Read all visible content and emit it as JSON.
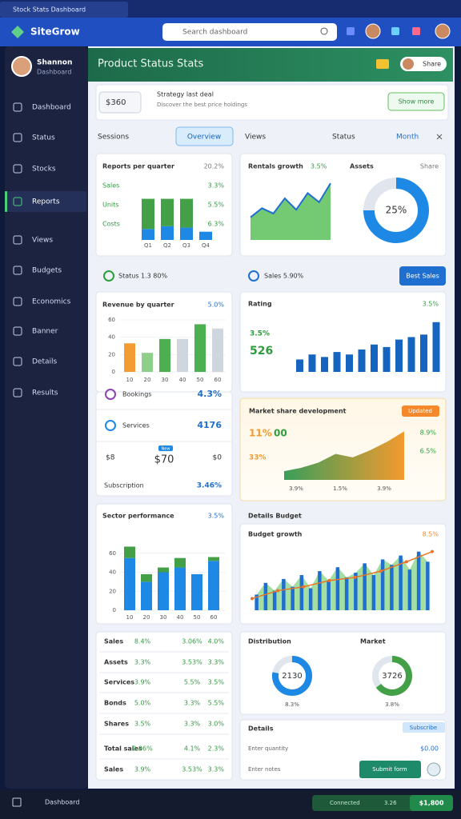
{
  "browser": {
    "tab": "Stock Stats Dashboard"
  },
  "topbar": {
    "logo": "SiteGrow",
    "search": "Search dashboard"
  },
  "sidebar": {
    "user": {
      "name": "Shannon",
      "role": "Dashboard"
    },
    "items": [
      "Dashboard",
      "Status",
      "Stocks",
      "Reports",
      "Views",
      "Budgets",
      "Economics",
      "Banner",
      "Details",
      "Results"
    ],
    "active": 3
  },
  "header": {
    "title": "Product Status Stats",
    "badge": "Share"
  },
  "filter": {
    "value": "$360",
    "label": "Strategy last deal",
    "sublabel": "Discover the best price holdings",
    "button": "Show more"
  },
  "tabs": {
    "items": [
      "Sessions",
      "Overview",
      "Views",
      "Status",
      "Month"
    ],
    "active": 1
  },
  "quarter_panel": {
    "title": "Reports per quarter",
    "change": "20.2%",
    "categories": [
      "Q1",
      "Q2",
      "Q3",
      "Q4"
    ],
    "series": [
      {
        "color": "#1e88e5",
        "values": [
          8,
          10,
          9,
          6
        ]
      },
      {
        "color": "#43a047",
        "values": [
          22,
          20,
          21,
          0
        ]
      }
    ],
    "ylim": [
      0,
      35
    ],
    "rows": [
      [
        "Sales",
        "3.3%"
      ],
      [
        "Units",
        "5.5%"
      ],
      [
        "Costs",
        "6.3%"
      ]
    ]
  },
  "growth_panel": {
    "title": "Rentals growth",
    "change": "3.5%",
    "color": "#5cc15a",
    "values": [
      30,
      42,
      35,
      55,
      40,
      62,
      50,
      75
    ],
    "ylim": [
      0,
      90
    ]
  },
  "assets_panel": {
    "title": "Assets",
    "subtitle": "Share",
    "values": [
      75,
      25
    ],
    "colors": [
      "#1e88e5",
      "#e1e6ee"
    ],
    "center": "25%"
  },
  "status_row": {
    "left": "Status 1.3 80%",
    "middle": "Sales 5.90%",
    "button": "Best Sales"
  },
  "revenue_panel": {
    "title": "Revenue by quarter",
    "change": "5.0%",
    "categories": [
      "10",
      "20",
      "30",
      "40",
      "50",
      "60"
    ],
    "values": [
      33,
      22,
      38,
      38,
      55,
      50
    ],
    "colors": [
      "#f39c33",
      "#8ed08a",
      "#4caf50",
      "#cfd6dd",
      "#4caf50",
      "#cfd6dd"
    ],
    "ylim": [
      0,
      60
    ],
    "yticks": [
      0,
      20,
      40,
      60
    ]
  },
  "rating_panel": {
    "title": "Rating",
    "change": "3.5%",
    "stat": "526",
    "stat_change": "3.5%",
    "values": [
      10,
      14,
      12,
      16,
      14,
      18,
      22,
      20,
      26,
      28,
      30,
      40
    ],
    "color": "#1565c0",
    "ylim": [
      0,
      45
    ]
  },
  "stats": [
    {
      "label": "Bookings",
      "value": "4.3%"
    },
    {
      "label": "Services",
      "value": "4176"
    }
  ],
  "price": {
    "left": "$8",
    "value": "$70",
    "right": "$0",
    "badge": "New"
  },
  "subtotal": {
    "label": "Subscription",
    "value": "3.46%"
  },
  "market_panel": {
    "title": "Market share development",
    "badge": "Updated",
    "stat": "11%",
    "stat2": "00",
    "stat3": "33%",
    "right": [
      "8.9%",
      "6.5%"
    ],
    "values": [
      10,
      14,
      20,
      30,
      26,
      34,
      44,
      56
    ],
    "ylim": [
      0,
      60
    ],
    "footer": [
      "3.9%",
      "1.5%",
      "3.9%"
    ]
  },
  "stacked_panel": {
    "title": "Sector performance",
    "change": "3.5%",
    "categories": [
      "10",
      "20",
      "30",
      "40",
      "50",
      "60"
    ],
    "series": [
      {
        "color": "#1e88e5",
        "values": [
          55,
          30,
          40,
          45,
          38,
          52
        ]
      },
      {
        "color": "#43a047",
        "values": [
          12,
          8,
          5,
          10,
          0,
          4
        ]
      }
    ],
    "ylim": [
      0,
      80
    ],
    "yticks": [
      0,
      20,
      40,
      60
    ]
  },
  "trend_panel": {
    "heading": "Details Budget",
    "title": "Budget growth",
    "change": "8.5%",
    "bars": [
      20,
      35,
      25,
      40,
      30,
      45,
      28,
      50,
      38,
      55,
      42,
      48,
      60,
      45,
      65,
      58,
      70,
      52,
      75,
      62
    ],
    "line": [
      15,
      25,
      30,
      38,
      42,
      50,
      62,
      75
    ],
    "ylim": [
      0,
      90
    ]
  },
  "table": {
    "colors": [
      "#333333",
      "#2e9d3e",
      "#2e9d3e",
      "#2e9d3e"
    ],
    "rows": [
      [
        "Sales",
        "8.4%",
        "3.06%",
        "4.0%"
      ],
      [
        "Assets",
        "3.3%",
        "3.53%",
        "3.3%"
      ],
      [
        "Services",
        "3.9%",
        "5.5%",
        "3.5%"
      ],
      [
        "Bonds",
        "5.0%",
        "3.3%",
        "5.5%"
      ],
      [
        "Shares",
        "3.5%",
        "3.3%",
        "3.0%"
      ],
      [
        "Total sales",
        "9.06%",
        "4.1%",
        "2.3%"
      ],
      [
        "Sales",
        "3.9%",
        "3.53%",
        "3.3%"
      ]
    ]
  },
  "donuts": [
    {
      "title": "Distribution",
      "value": "2130",
      "share": 78,
      "color": "#1e88e5",
      "foot": "8.3%"
    },
    {
      "title": "Market",
      "value": "3726",
      "share": 65,
      "color": "#43a047",
      "foot": "3.8%"
    }
  ],
  "details": {
    "title": "Details",
    "badge": "Subscribe",
    "input": "Enter quantity",
    "amount": "$0.00",
    "input2": "Enter notes",
    "button": "Submit form"
  },
  "bottombar": {
    "label": "Dashboard",
    "status": "Connected",
    "count": "3.26",
    "total": "$1,800"
  }
}
